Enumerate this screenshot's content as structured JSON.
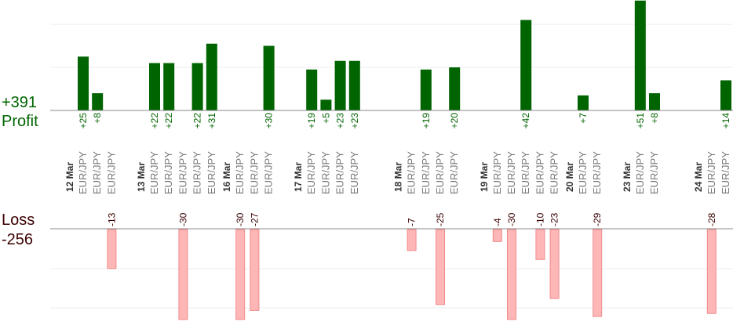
{
  "summary": {
    "profit_total": "+391",
    "profit_label": "Profit",
    "loss_label": "Loss",
    "loss_total": "-256"
  },
  "colors": {
    "profit_bar": "#006400",
    "loss_bar_fill": "#ffb6b6",
    "loss_bar_stroke": "#f08c8c",
    "profit_text": "#006400",
    "loss_text": "#3a0000",
    "axis_text": "#333333",
    "pair_text": "#777777",
    "gridline": "#eeeeee",
    "baseline": "#888888"
  },
  "chart_data": {
    "type": "bar",
    "profit_ylim": [
      0,
      50
    ],
    "loss_ylim": [
      -30,
      0
    ],
    "columns": [
      {
        "pair": "EUR/JPY",
        "date": "12 Mar",
        "profit": 25,
        "loss": null
      },
      {
        "pair": "EUR/JPY",
        "date": "",
        "profit": 8,
        "loss": null
      },
      {
        "pair": "EUR/JPY",
        "date": "",
        "profit": null,
        "loss": -13
      },
      {
        "pair": "",
        "date": "",
        "profit": null,
        "loss": null
      },
      {
        "pair": "",
        "date": "",
        "profit": null,
        "loss": null
      },
      {
        "pair": "EUR/JPY",
        "date": "13 Mar",
        "profit": 22,
        "loss": null
      },
      {
        "pair": "EUR/JPY",
        "date": "",
        "profit": 22,
        "loss": null
      },
      {
        "pair": "EUR/JPY",
        "date": "",
        "profit": null,
        "loss": -30
      },
      {
        "pair": "EUR/JPY",
        "date": "",
        "profit": 22,
        "loss": null
      },
      {
        "pair": "EUR/JPY",
        "date": "",
        "profit": 31,
        "loss": null
      },
      {
        "pair": "",
        "date": "",
        "profit": null,
        "loss": null
      },
      {
        "pair": "EUR/JPY",
        "date": "16 Mar",
        "profit": null,
        "loss": -30
      },
      {
        "pair": "EUR/JPY",
        "date": "",
        "profit": null,
        "loss": -27
      },
      {
        "pair": "EUR/JPY",
        "date": "",
        "profit": 30,
        "loss": null
      },
      {
        "pair": "",
        "date": "",
        "profit": null,
        "loss": null
      },
      {
        "pair": "",
        "date": "",
        "profit": null,
        "loss": null
      },
      {
        "pair": "EUR/JPY",
        "date": "17 Mar",
        "profit": 19,
        "loss": null
      },
      {
        "pair": "EUR/JPY",
        "date": "",
        "profit": 5,
        "loss": null
      },
      {
        "pair": "EUR/JPY",
        "date": "",
        "profit": 23,
        "loss": null
      },
      {
        "pair": "EUR/JPY",
        "date": "",
        "profit": 23,
        "loss": null
      },
      {
        "pair": "",
        "date": "",
        "profit": null,
        "loss": null
      },
      {
        "pair": "",
        "date": "",
        "profit": null,
        "loss": null
      },
      {
        "pair": "",
        "date": "",
        "profit": null,
        "loss": null
      },
      {
        "pair": "EUR/JPY",
        "date": "18 Mar",
        "profit": null,
        "loss": -7
      },
      {
        "pair": "EUR/JPY",
        "date": "",
        "profit": 19,
        "loss": null
      },
      {
        "pair": "EUR/JPY",
        "date": "",
        "profit": null,
        "loss": -25
      },
      {
        "pair": "EUR/JPY",
        "date": "",
        "profit": 20,
        "loss": null
      },
      {
        "pair": "",
        "date": "",
        "profit": null,
        "loss": null
      },
      {
        "pair": "",
        "date": "",
        "profit": null,
        "loss": null
      },
      {
        "pair": "EUR/JPY",
        "date": "19 Mar",
        "profit": null,
        "loss": -4
      },
      {
        "pair": "EUR/JPY",
        "date": "",
        "profit": null,
        "loss": -30
      },
      {
        "pair": "EUR/JPY",
        "date": "",
        "profit": 42,
        "loss": null
      },
      {
        "pair": "EUR/JPY",
        "date": "",
        "profit": null,
        "loss": -10
      },
      {
        "pair": "EUR/JPY",
        "date": "",
        "profit": null,
        "loss": -23
      },
      {
        "pair": "",
        "date": "",
        "profit": null,
        "loss": null
      },
      {
        "pair": "EUR/JPY",
        "date": "20 Mar",
        "profit": 7,
        "loss": null
      },
      {
        "pair": "EUR/JPY",
        "date": "",
        "profit": null,
        "loss": -29
      },
      {
        "pair": "",
        "date": "",
        "profit": null,
        "loss": null
      },
      {
        "pair": "",
        "date": "",
        "profit": null,
        "loss": null
      },
      {
        "pair": "EUR/JPY",
        "date": "23 Mar",
        "profit": 51,
        "loss": null
      },
      {
        "pair": "EUR/JPY",
        "date": "",
        "profit": 8,
        "loss": null
      },
      {
        "pair": "",
        "date": "",
        "profit": null,
        "loss": null
      },
      {
        "pair": "",
        "date": "",
        "profit": null,
        "loss": null
      },
      {
        "pair": "",
        "date": "",
        "profit": null,
        "loss": null
      },
      {
        "pair": "EUR/JPY",
        "date": "24 Mar",
        "profit": null,
        "loss": -28
      },
      {
        "pair": "EUR/JPY",
        "date": "",
        "profit": 14,
        "loss": null
      }
    ]
  }
}
